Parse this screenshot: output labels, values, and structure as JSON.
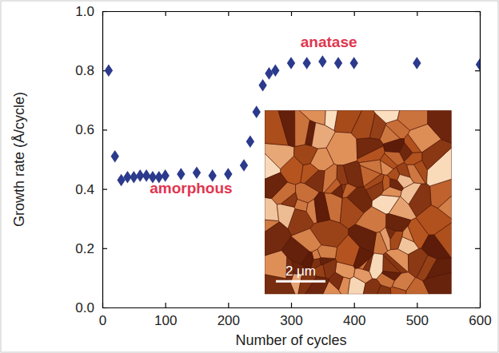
{
  "chart_data": {
    "type": "scatter",
    "xlabel": "Number of cycles",
    "ylabel": "Growth rate (Å/cycle)",
    "x": [
      10,
      20,
      30,
      40,
      50,
      60,
      70,
      80,
      90,
      100,
      125,
      150,
      175,
      200,
      225,
      235,
      245,
      255,
      265,
      275,
      300,
      325,
      350,
      375,
      400,
      500,
      600
    ],
    "values": [
      0.8,
      0.51,
      0.43,
      0.44,
      0.44,
      0.445,
      0.445,
      0.44,
      0.44,
      0.445,
      0.45,
      0.455,
      0.445,
      0.45,
      0.48,
      0.56,
      0.66,
      0.75,
      0.79,
      0.8,
      0.825,
      0.825,
      0.83,
      0.825,
      0.825,
      0.825,
      0.82
    ],
    "color": "#2b3a8c",
    "marker": "diamond",
    "xlim": [
      0,
      600
    ],
    "xticks": [
      0,
      100,
      200,
      300,
      400,
      500,
      600
    ],
    "ylim": [
      0,
      1
    ],
    "yticks": [
      {
        "value": 0,
        "label": "0.0"
      },
      0.2,
      0.4,
      0.6,
      0.8,
      {
        "value": 1,
        "label": "1.0"
      }
    ],
    "grid": false,
    "annotations": [
      {
        "text": "amorphous",
        "color": "#e0364f"
      },
      {
        "text": "anatase",
        "color": "#e0364f"
      },
      {
        "text": "2 μm",
        "color": "#ffffff"
      }
    ]
  }
}
